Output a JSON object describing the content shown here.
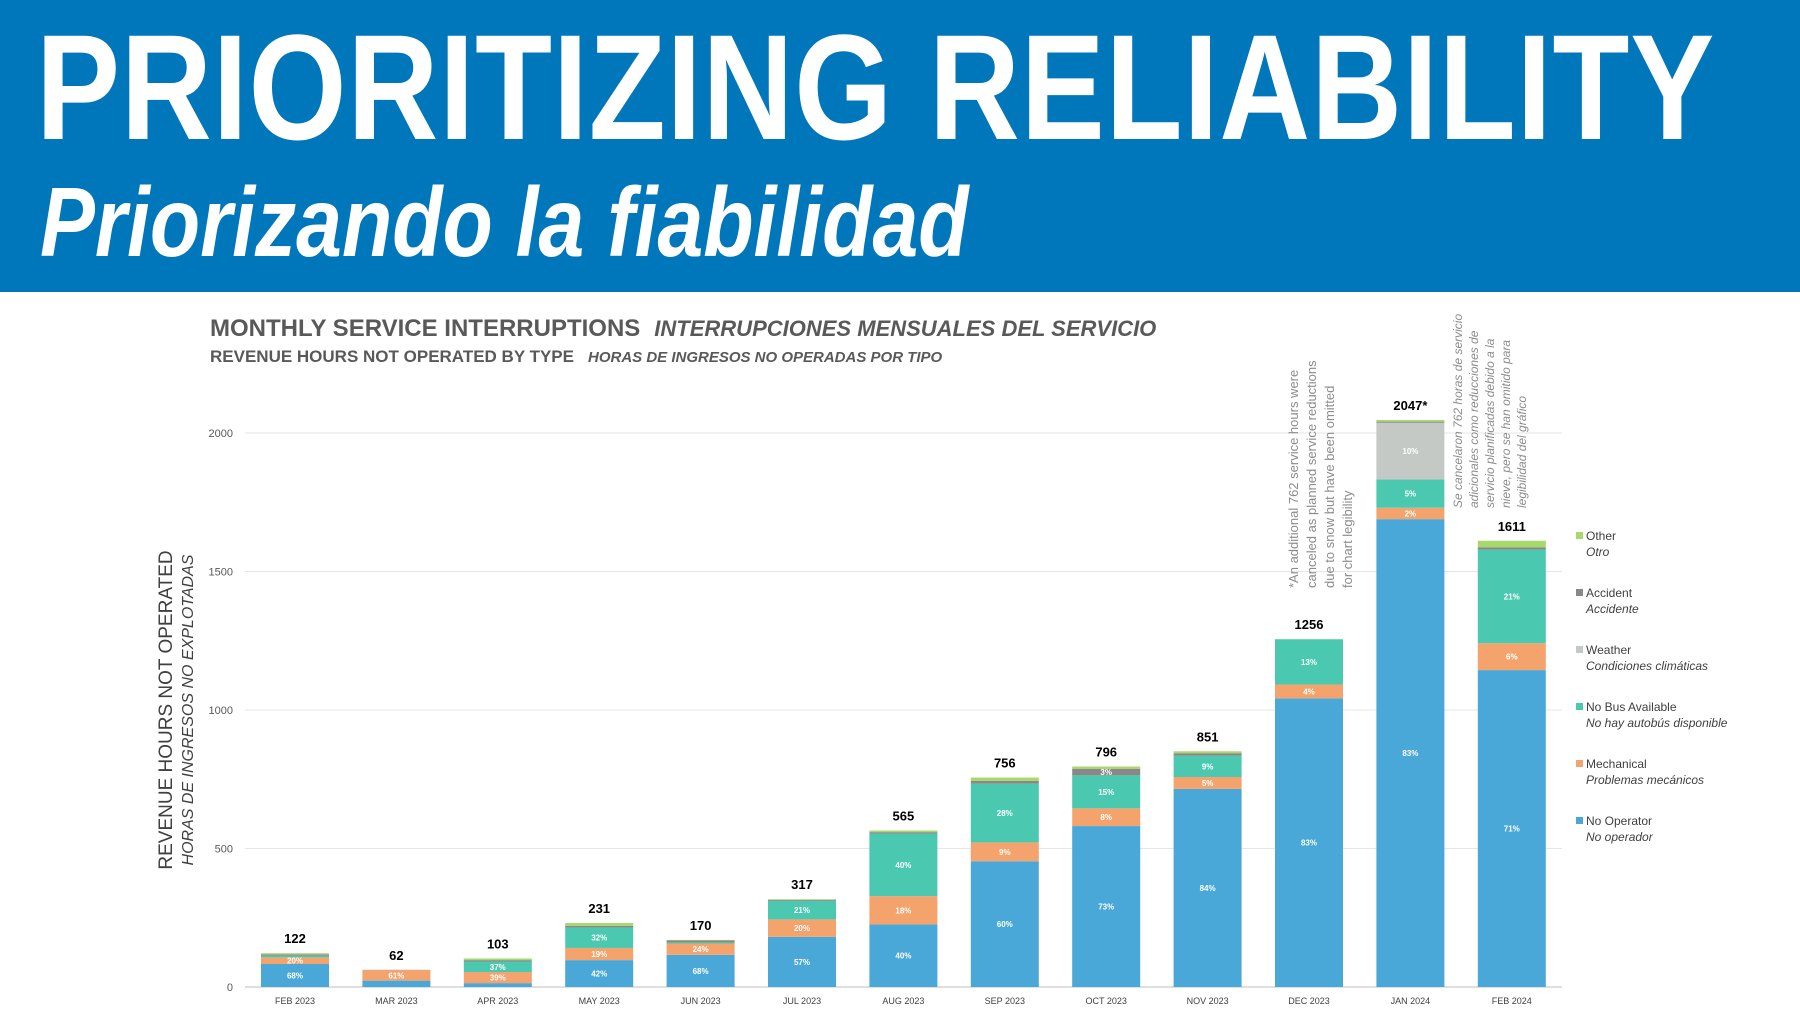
{
  "banner": {
    "title": "PRIORITIZING RELIABILITY",
    "subtitle": "Priorizando la fiabilidad",
    "background": "#0077bb"
  },
  "chart_data": {
    "type": "bar",
    "stacked": true,
    "title": "MONTHLY SERVICE INTERRUPTIONS",
    "title_es": "INTERRUPCIONES MENSUALES DEL SERVICIO",
    "subtitle": "REVENUE HOURS NOT OPERATED BY TYPE",
    "subtitle_es": "HORAS DE INGRESOS NO OPERADAS POR TIPO",
    "ylabel": "REVENUE HOURS NOT OPERATED",
    "ylabel_es": "HORAS DE INGRESOS NO EXPLOTADAS",
    "ylim": [
      0,
      2000
    ],
    "yticks": [
      "0",
      "500",
      "1000",
      "1500",
      "2000"
    ],
    "grid": true,
    "legend_position": "right",
    "categories": [
      "FEB 2023",
      "MAR 2023",
      "APR 2023",
      "MAY 2023",
      "JUN 2023",
      "JUL 2023",
      "AUG 2023",
      "SEP 2023",
      "OCT 2023",
      "NOV 2023",
      "DEC 2023",
      "JAN 2024",
      "FEB 2024"
    ],
    "totals": [
      "122",
      "62",
      "103",
      "231",
      "170",
      "317",
      "565",
      "756",
      "796",
      "851",
      "1256",
      "2047*",
      "1611"
    ],
    "series": [
      {
        "name": "No Operator",
        "name_es": "No operador",
        "color": "#4aa8d8",
        "values": [
          83,
          23,
          14,
          97,
          116,
          181,
          226,
          454,
          581,
          715,
          1042,
          1689,
          1144
        ],
        "labels": [
          "68%",
          "",
          "",
          "42%",
          "68%",
          "57%",
          "40%",
          "60%",
          "73%",
          "84%",
          "83%",
          "83%",
          "71%"
        ]
      },
      {
        "name": "Mechanical",
        "name_es": "Problemas mecánicos",
        "color": "#f4a36c",
        "values": [
          24,
          38,
          40,
          44,
          41,
          63,
          102,
          68,
          64,
          43,
          50,
          41,
          97
        ],
        "labels": [
          "20%",
          "61%",
          "39%",
          "19%",
          "24%",
          "20%",
          "18%",
          "9%",
          "8%",
          "5%",
          "4%",
          "2%",
          "6%"
        ]
      },
      {
        "name": "No Bus Available",
        "name_es": "No hay autobús disponible",
        "color": "#4bc9b0",
        "values": [
          6,
          0,
          38,
          74,
          4,
          67,
          226,
          212,
          119,
          77,
          163,
          102,
          338
        ],
        "labels": [
          "",
          "",
          "37%",
          "32%",
          "",
          "21%",
          "40%",
          "28%",
          "15%",
          "9%",
          "13%",
          "5%",
          "21%"
        ]
      },
      {
        "name": "Weather",
        "name_es": "Condiciones climáticas",
        "color": "#c4c9c6",
        "values": [
          0,
          0,
          0,
          0,
          0,
          0,
          0,
          0,
          0,
          0,
          0,
          205,
          0
        ],
        "labels": [
          "",
          "",
          "",
          "",
          "",
          "",
          "",
          "",
          "",
          "",
          "",
          "10%",
          ""
        ]
      },
      {
        "name": "Accident",
        "name_es": "Accidente",
        "color": "#888888",
        "values": [
          5,
          1,
          5,
          6,
          7,
          4,
          5,
          10,
          24,
          9,
          0,
          4,
          8
        ],
        "labels": [
          "",
          "",
          "",
          "",
          "",
          "",
          "",
          "",
          "3%",
          "",
          "",
          "",
          ""
        ]
      },
      {
        "name": "Other",
        "name_es": "Otro",
        "color": "#a6d96a",
        "values": [
          4,
          0,
          6,
          10,
          2,
          2,
          6,
          12,
          8,
          7,
          1,
          6,
          24
        ],
        "labels": [
          "",
          "",
          "",
          "",
          "",
          "",
          "",
          "",
          "",
          "",
          "",
          "",
          ""
        ]
      }
    ],
    "annotations": {
      "english": [
        "*An additional 762 service hours were",
        "canceled as planned service reductions",
        "due to snow but have been omitted",
        "for chart legibility"
      ],
      "spanish": [
        "Se cancelaron 762 horas de servicio",
        "adicionales como reducciones de",
        "servicio planificadas debido a la",
        "nieve, pero se han omitido para",
        "legibilidad del gráfico"
      ]
    }
  }
}
